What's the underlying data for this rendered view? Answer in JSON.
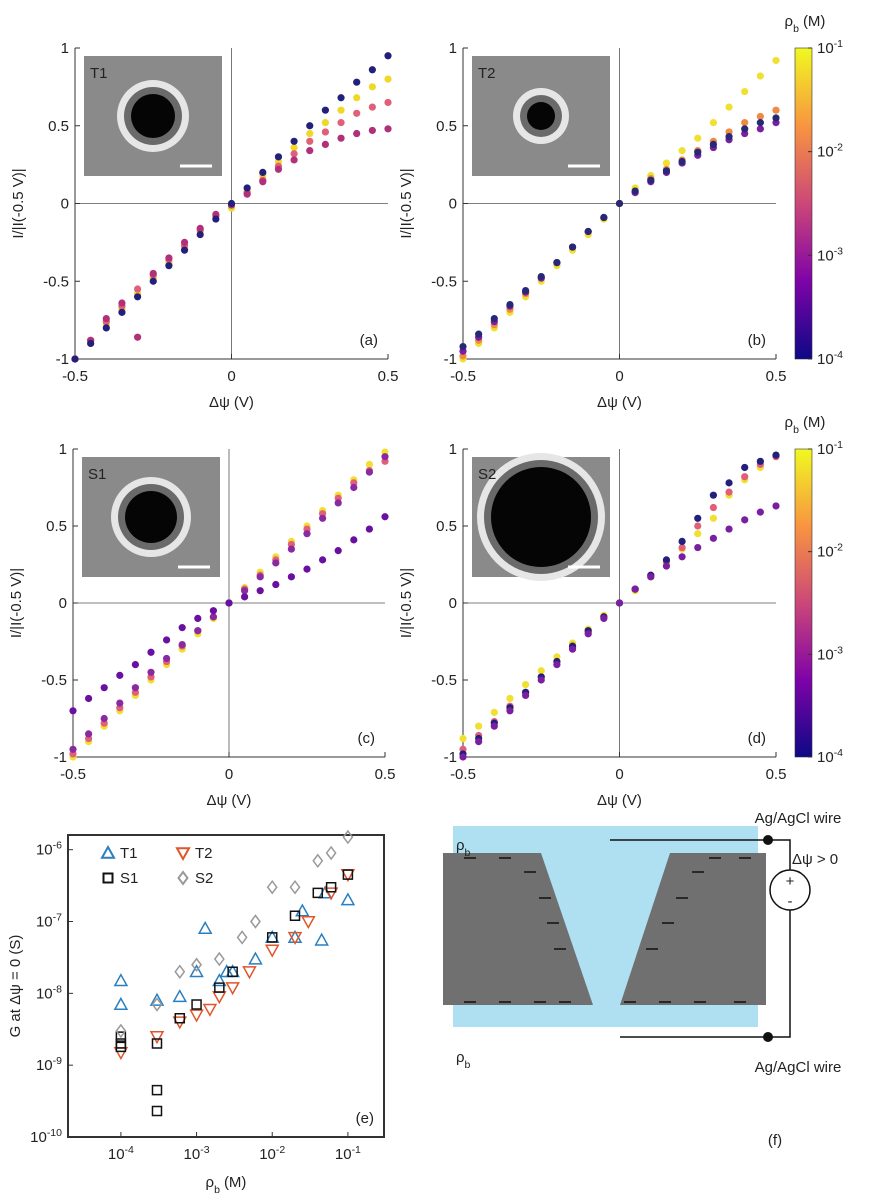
{
  "chart_data": [
    {
      "type": "scatter",
      "panel": "(a)",
      "inset": "T1",
      "xlabel": "Δψ (V)",
      "ylabel": "I/|I(-0.5 V)|",
      "zero_lines": true,
      "xlim": [
        -0.5,
        0.5
      ],
      "ylim": [
        -1,
        1
      ],
      "xticks": [
        -0.5,
        0,
        0.5
      ],
      "yticks": [
        -1,
        -0.5,
        0,
        0.5,
        1
      ],
      "x": [
        -0.5,
        -0.45,
        -0.4,
        -0.35,
        -0.3,
        -0.25,
        -0.2,
        -0.15,
        -0.1,
        -0.05,
        0,
        0.05,
        0.1,
        0.15,
        0.2,
        0.25,
        0.3,
        0.35,
        0.4,
        0.45,
        0.5
      ],
      "series": [
        {
          "color": "#f0d828",
          "values": [
            -1,
            -0.9,
            -0.78,
            -0.68,
            -0.58,
            -0.48,
            -0.38,
            -0.28,
            -0.18,
            -0.08,
            -0.03,
            0.08,
            0.18,
            0.27,
            0.36,
            0.45,
            0.52,
            0.6,
            0.68,
            0.75,
            0.8
          ]
        },
        {
          "color": "#e0607a",
          "values": [
            -1,
            -0.88,
            -0.76,
            -0.66,
            -0.55,
            -0.46,
            -0.36,
            -0.27,
            -0.17,
            -0.08,
            -0.01,
            0.07,
            0.15,
            0.24,
            0.32,
            0.4,
            0.46,
            0.52,
            0.58,
            0.62,
            0.65
          ]
        },
        {
          "color": "#b0307a",
          "values": [
            -1,
            -0.88,
            -0.74,
            -0.64,
            -0.86,
            -0.45,
            -0.35,
            -0.25,
            -0.16,
            -0.07,
            -0.01,
            0.06,
            0.14,
            0.22,
            0.28,
            0.34,
            0.38,
            0.42,
            0.45,
            0.47,
            0.48
          ]
        },
        {
          "color": "#22207a",
          "values": [
            -1,
            -0.9,
            -0.8,
            -0.7,
            -0.6,
            -0.5,
            -0.4,
            -0.3,
            -0.2,
            -0.1,
            0,
            0.1,
            0.2,
            0.3,
            0.4,
            0.5,
            0.6,
            0.68,
            0.78,
            0.86,
            0.95
          ]
        }
      ]
    },
    {
      "type": "scatter",
      "panel": "(b)",
      "inset": "T2",
      "xlabel": "Δψ (V)",
      "ylabel": "I/|I(-0.5 V)|",
      "zero_lines": true,
      "xlim": [
        -0.5,
        0.5
      ],
      "ylim": [
        -1,
        1
      ],
      "xticks": [
        -0.5,
        0,
        0.5
      ],
      "yticks": [
        -1,
        -0.5,
        0,
        0.5,
        1
      ],
      "x": [
        -0.5,
        -0.45,
        -0.4,
        -0.35,
        -0.3,
        -0.25,
        -0.2,
        -0.15,
        -0.1,
        -0.05,
        0,
        0.05,
        0.1,
        0.15,
        0.2,
        0.25,
        0.3,
        0.35,
        0.4,
        0.45,
        0.5
      ],
      "series": [
        {
          "color": "#f0e030",
          "values": [
            -1,
            -0.9,
            -0.8,
            -0.7,
            -0.6,
            -0.5,
            -0.4,
            -0.3,
            -0.2,
            -0.1,
            0,
            0.1,
            0.18,
            0.26,
            0.34,
            0.42,
            0.52,
            0.62,
            0.72,
            0.82,
            0.92
          ]
        },
        {
          "color": "#f08a40",
          "values": [
            -0.98,
            -0.88,
            -0.78,
            -0.68,
            -0.58,
            -0.48,
            -0.38,
            -0.28,
            -0.18,
            -0.09,
            0,
            0.08,
            0.16,
            0.22,
            0.28,
            0.34,
            0.4,
            0.46,
            0.52,
            0.56,
            0.6
          ]
        },
        {
          "color": "#7a1fa0",
          "values": [
            -0.95,
            -0.86,
            -0.76,
            -0.66,
            -0.57,
            -0.48,
            -0.38,
            -0.28,
            -0.18,
            -0.09,
            0,
            0.07,
            0.14,
            0.2,
            0.26,
            0.31,
            0.36,
            0.41,
            0.45,
            0.48,
            0.52
          ]
        },
        {
          "color": "#282878",
          "values": [
            -0.92,
            -0.84,
            -0.74,
            -0.65,
            -0.56,
            -0.47,
            -0.38,
            -0.28,
            -0.18,
            -0.09,
            0,
            0.08,
            0.15,
            0.21,
            0.27,
            0.33,
            0.38,
            0.43,
            0.48,
            0.52,
            0.55
          ]
        }
      ],
      "colorbar": {
        "label": "ρ",
        "label_sub": "b",
        "unit": "(M)",
        "clim": [
          0.0001,
          0.1
        ],
        "colors": [
          "#0d0887",
          "#7e03a8",
          "#cc4778",
          "#f89540",
          "#f0f921"
        ],
        "ticks": [
          {
            "value": 0.0001,
            "label": "10",
            "exponent": "-4"
          },
          {
            "value": 0.001,
            "label": "10",
            "exponent": "-3"
          },
          {
            "value": 0.01,
            "label": "10",
            "exponent": "-2"
          },
          {
            "value": 0.1,
            "label": "10",
            "exponent": "-1"
          }
        ]
      }
    },
    {
      "type": "scatter",
      "panel": "(c)",
      "inset": "S1",
      "xlabel": "Δψ (V)",
      "ylabel": "I/|I(-0.5 V)|",
      "zero_lines": true,
      "xlim": [
        -0.5,
        0.5
      ],
      "ylim": [
        -1,
        1
      ],
      "xticks": [
        -0.5,
        0,
        0.5
      ],
      "yticks": [
        -1,
        -0.5,
        0,
        0.5,
        1
      ],
      "x": [
        -0.5,
        -0.45,
        -0.4,
        -0.35,
        -0.3,
        -0.25,
        -0.2,
        -0.15,
        -0.1,
        -0.05,
        0,
        0.05,
        0.1,
        0.15,
        0.2,
        0.25,
        0.3,
        0.35,
        0.4,
        0.45,
        0.5
      ],
      "series": [
        {
          "color": "#f0e030",
          "values": [
            -1,
            -0.9,
            -0.8,
            -0.7,
            -0.6,
            -0.5,
            -0.4,
            -0.3,
            -0.2,
            -0.1,
            0,
            0.1,
            0.2,
            0.3,
            0.4,
            0.5,
            0.6,
            0.7,
            0.8,
            0.9,
            0.98
          ]
        },
        {
          "color": "#e0607a",
          "values": [
            -0.98,
            -0.88,
            -0.78,
            -0.68,
            -0.58,
            -0.48,
            -0.38,
            -0.28,
            -0.18,
            -0.09,
            0,
            0.09,
            0.18,
            0.28,
            0.38,
            0.48,
            0.58,
            0.68,
            0.78,
            0.86,
            0.92
          ]
        },
        {
          "color": "#8a2aa0",
          "values": [
            -0.95,
            -0.85,
            -0.75,
            -0.65,
            -0.55,
            -0.45,
            -0.36,
            -0.27,
            -0.18,
            -0.09,
            0,
            0.08,
            0.17,
            0.26,
            0.35,
            0.45,
            0.55,
            0.65,
            0.75,
            0.85,
            0.95
          ]
        },
        {
          "color": "#6a10a0",
          "values": [
            -0.7,
            -0.62,
            -0.55,
            -0.47,
            -0.4,
            -0.32,
            -0.24,
            -0.16,
            -0.1,
            -0.05,
            0,
            0.04,
            0.08,
            0.12,
            0.17,
            0.22,
            0.28,
            0.34,
            0.41,
            0.48,
            0.56
          ]
        }
      ]
    },
    {
      "type": "scatter",
      "panel": "(d)",
      "inset": "S2",
      "xlabel": "Δψ (V)",
      "ylabel": "I/|I(-0.5 V)|",
      "zero_lines": true,
      "xlim": [
        -0.5,
        0.5
      ],
      "ylim": [
        -1,
        1
      ],
      "xticks": [
        -0.5,
        0,
        0.5
      ],
      "yticks": [
        -1,
        -0.5,
        0,
        0.5,
        1
      ],
      "x": [
        -0.5,
        -0.45,
        -0.4,
        -0.35,
        -0.3,
        -0.25,
        -0.2,
        -0.15,
        -0.1,
        -0.05,
        0,
        0.05,
        0.1,
        0.15,
        0.2,
        0.25,
        0.3,
        0.35,
        0.4,
        0.45,
        0.5
      ],
      "series": [
        {
          "color": "#f0e030",
          "values": [
            -0.88,
            -0.8,
            -0.71,
            -0.62,
            -0.53,
            -0.44,
            -0.35,
            -0.26,
            -0.17,
            -0.08,
            0,
            0.08,
            0.17,
            0.26,
            0.35,
            0.45,
            0.55,
            0.7,
            0.8,
            0.88,
            0.96
          ]
        },
        {
          "color": "#e0607a",
          "values": [
            -0.95,
            -0.86,
            -0.77,
            -0.67,
            -0.58,
            -0.48,
            -0.38,
            -0.29,
            -0.19,
            -0.09,
            0,
            0.09,
            0.18,
            0.27,
            0.36,
            0.5,
            0.62,
            0.72,
            0.82,
            0.9,
            0.95
          ]
        },
        {
          "color": "#22207a",
          "values": [
            -0.98,
            -0.88,
            -0.78,
            -0.68,
            -0.58,
            -0.48,
            -0.38,
            -0.28,
            -0.18,
            -0.09,
            0,
            0.09,
            0.18,
            0.28,
            0.4,
            0.55,
            0.7,
            0.78,
            0.88,
            0.92,
            0.96
          ]
        },
        {
          "color": "#7a1fa0",
          "values": [
            -1,
            -0.9,
            -0.8,
            -0.7,
            -0.6,
            -0.5,
            -0.4,
            -0.3,
            -0.2,
            -0.1,
            0,
            0.09,
            0.17,
            0.24,
            0.3,
            0.36,
            0.42,
            0.48,
            0.54,
            0.59,
            0.63
          ]
        }
      ],
      "colorbar": {
        "label": "ρ",
        "label_sub": "b",
        "unit": "(M)",
        "clim": [
          0.0001,
          0.1
        ],
        "colors": [
          "#0d0887",
          "#7e03a8",
          "#cc4778",
          "#f89540",
          "#f0f921"
        ],
        "ticks": [
          {
            "value": 0.0001,
            "label": "10",
            "exponent": "-4"
          },
          {
            "value": 0.001,
            "label": "10",
            "exponent": "-3"
          },
          {
            "value": 0.01,
            "label": "10",
            "exponent": "-2"
          },
          {
            "value": 0.1,
            "label": "10",
            "exponent": "-1"
          }
        ]
      }
    },
    {
      "type": "scatter",
      "panel": "(e)",
      "log_x": true,
      "log_y": true,
      "box": true,
      "xlabel": {
        "main": "ρ",
        "sub": "b",
        "unit": "(M)"
      },
      "ylabel": "G at Δψ = 0 (S)",
      "xlim": [
        2e-05,
        0.3
      ],
      "ylim": [
        1e-10,
        1.6e-06
      ],
      "xticks": [
        {
          "value": 0.0001,
          "label": "10",
          "exponent": "-4"
        },
        {
          "value": 0.001,
          "label": "10",
          "exponent": "-3"
        },
        {
          "value": 0.01,
          "label": "10",
          "exponent": "-2"
        },
        {
          "value": 0.1,
          "label": "10",
          "exponent": "-1"
        }
      ],
      "yticks": [
        {
          "value": 1e-10,
          "label": "10",
          "exponent": "-10"
        },
        {
          "value": 1e-09,
          "label": "10",
          "exponent": "-9"
        },
        {
          "value": 1e-08,
          "label": "10",
          "exponent": "-8"
        },
        {
          "value": 1e-07,
          "label": "10",
          "exponent": "-7"
        },
        {
          "value": 1e-06,
          "label": "10",
          "exponent": "-6"
        }
      ],
      "series": [
        {
          "name": "T1",
          "color": "#2a7fc0",
          "marker": "triangle-up",
          "x": [
            0.0001,
            0.0001,
            0.0003,
            0.0006,
            0.001,
            0.0013,
            0.002,
            0.0025,
            0.003,
            0.006,
            0.01,
            0.02,
            0.025,
            0.045,
            0.05,
            0.1
          ],
          "values": [
            1.5e-08,
            7e-09,
            8e-09,
            9e-09,
            2e-08,
            8e-08,
            1.5e-08,
            2e-08,
            2e-08,
            3e-08,
            6e-08,
            6e-08,
            1.4e-07,
            5.5e-08,
            2.5e-07,
            2e-07
          ]
        },
        {
          "name": "T2",
          "color": "#e0552a",
          "marker": "triangle-down",
          "x": [
            0.0001,
            0.0003,
            0.0006,
            0.001,
            0.0015,
            0.002,
            0.003,
            0.005,
            0.01,
            0.02,
            0.03,
            0.06,
            0.1
          ],
          "values": [
            1.5e-09,
            2.5e-09,
            4e-09,
            5e-09,
            6e-09,
            9e-09,
            1.2e-08,
            2e-08,
            4e-08,
            6e-08,
            1e-07,
            2.5e-07,
            4.5e-07
          ]
        },
        {
          "name": "S1",
          "color": "#111111",
          "marker": "square",
          "x": [
            0.0001,
            0.0001,
            0.0001,
            0.0003,
            0.0003,
            0.0003,
            0.0006,
            0.001,
            0.002,
            0.003,
            0.01,
            0.02,
            0.04,
            0.06,
            0.1
          ],
          "values": [
            2.5e-09,
            2e-09,
            1.8e-09,
            2e-09,
            4.5e-10,
            2.3e-10,
            4.5e-09,
            7e-09,
            1.2e-08,
            2e-08,
            6e-08,
            1.2e-07,
            2.5e-07,
            3e-07,
            4.5e-07
          ]
        },
        {
          "name": "S2",
          "color": "#999999",
          "marker": "diamond",
          "x": [
            0.0001,
            0.0003,
            0.0006,
            0.001,
            0.002,
            0.004,
            0.006,
            0.01,
            0.02,
            0.04,
            0.06,
            0.1
          ],
          "values": [
            3e-09,
            7e-09,
            2e-08,
            2.5e-08,
            3e-08,
            6e-08,
            1e-07,
            3e-07,
            3e-07,
            7e-07,
            9e-07,
            1.5e-06
          ]
        }
      ]
    }
  ],
  "diagram": {
    "label": "(f)",
    "rho_top": {
      "main": "ρ",
      "sub": "b"
    },
    "rho_bottom": {
      "main": "ρ",
      "sub": "b"
    },
    "wire_top": "Ag/AgCl wire",
    "wire_bottom": "Ag/AgCl wire",
    "voltage": "Δψ > 0",
    "plus": "+",
    "minus": "-"
  }
}
